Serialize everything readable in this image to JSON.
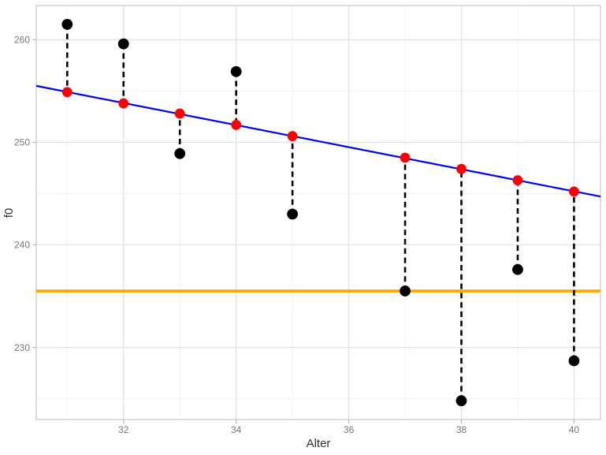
{
  "chart_data": {
    "type": "scatter",
    "title": "",
    "xlabel": "Alter",
    "ylabel": "f0",
    "x": [
      31,
      32,
      33,
      34,
      35,
      37,
      38,
      39,
      40
    ],
    "series": [
      {
        "name": "observed",
        "marker": "circle",
        "color": "#000000",
        "values": [
          261.5,
          259.6,
          248.9,
          256.9,
          243.0,
          235.5,
          224.8,
          237.6,
          228.7
        ]
      },
      {
        "name": "fitted",
        "marker": "circle",
        "color": "#ff0000",
        "values": [
          254.9,
          253.8,
          252.8,
          251.7,
          250.6,
          248.5,
          247.4,
          246.3,
          245.2
        ]
      }
    ],
    "residual_segments": {
      "connects": "observed-to-fitted",
      "color": "#000000",
      "style": "dashed"
    },
    "regression_line": {
      "color": "#0000ff",
      "slope": -1.077,
      "intercept": 288.3
    },
    "reference_line_y": {
      "color": "#ffa500",
      "value": 235.5
    },
    "xlim": [
      30.45,
      40.47
    ],
    "ylim": [
      222.97,
      263.34
    ],
    "xticks": [
      32,
      34,
      36,
      38,
      40
    ],
    "yticks": [
      230,
      240,
      250,
      260
    ],
    "xticks_minor": [
      31,
      33,
      35,
      37,
      39
    ],
    "yticks_minor": [
      225,
      235,
      245,
      255
    ],
    "grid": "major+minor",
    "legend": "none",
    "colors": {
      "panel_bg": "#ffffff",
      "panel_border": "#c6c6c6",
      "grid_major": "#e2e2e2",
      "grid_minor": "#f0f0f0",
      "tick_mark": "#b5b5b5",
      "tick_text": "#767676",
      "axis_title_text": "#303030"
    }
  }
}
